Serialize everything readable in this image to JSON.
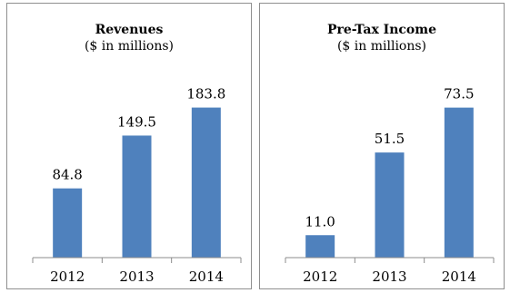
{
  "chart_data": [
    {
      "type": "bar",
      "title": "Revenues",
      "subtitle": "($ in millions)",
      "categories": [
        "2012",
        "2013",
        "2014"
      ],
      "values": [
        84.8,
        149.5,
        183.8
      ],
      "data_labels": [
        "84.8",
        "149.5",
        "183.8"
      ],
      "ylim": [
        0,
        200
      ],
      "grid": false,
      "color": "#4f81bd"
    },
    {
      "type": "bar",
      "title": "Pre-Tax Income",
      "subtitle": "($ in millions)",
      "categories": [
        "2012",
        "2013",
        "2014"
      ],
      "values": [
        11.0,
        51.5,
        73.5
      ],
      "data_labels": [
        "11.0",
        "51.5",
        "73.5"
      ],
      "ylim": [
        0,
        80
      ],
      "grid": false,
      "color": "#4f81bd"
    }
  ]
}
